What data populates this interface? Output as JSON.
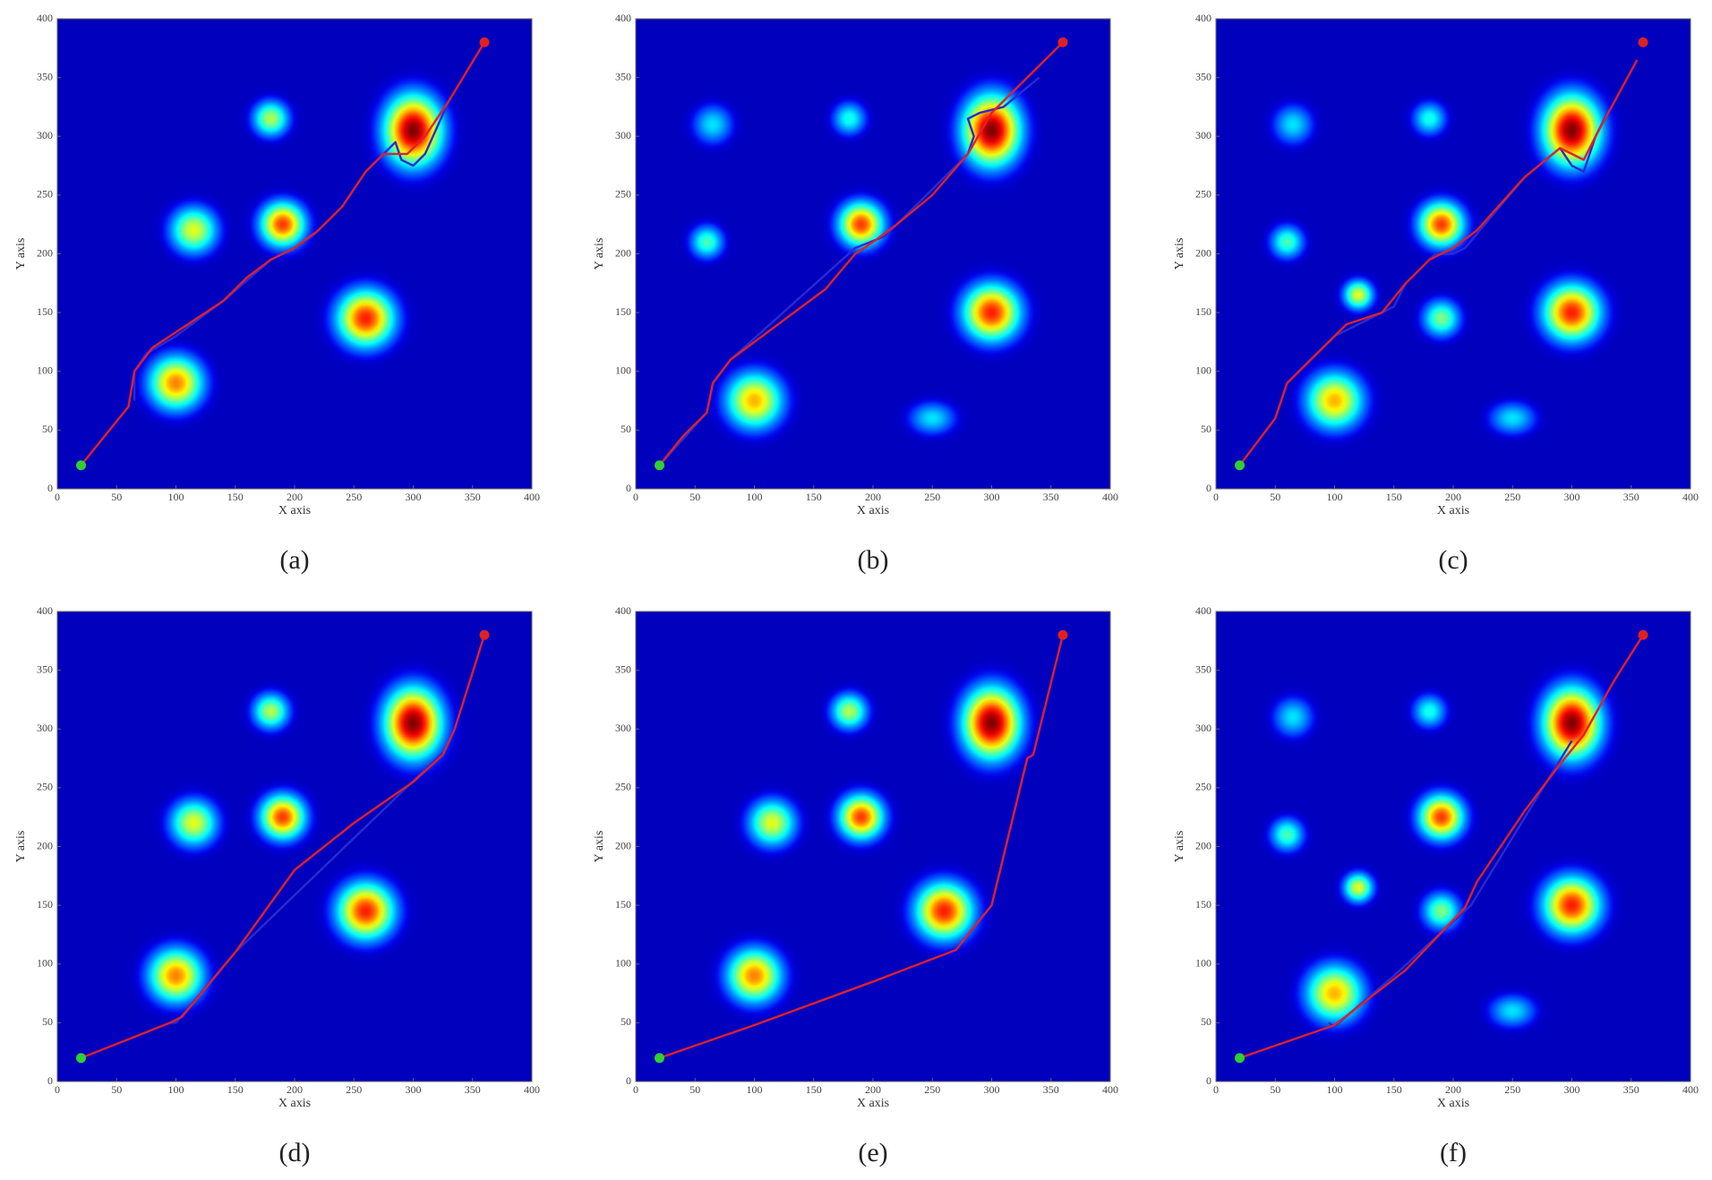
{
  "chart_data": [
    {
      "type": "heatmap",
      "caption": "(a)",
      "xlabel": "X axis",
      "ylabel": "Y axis",
      "xlim": [
        0,
        400
      ],
      "ylim": [
        0,
        400
      ],
      "xticks": [
        0,
        50,
        100,
        150,
        200,
        250,
        300,
        350,
        400
      ],
      "yticks": [
        0,
        50,
        100,
        150,
        200,
        250,
        300,
        350,
        400
      ],
      "threats": [
        {
          "x": 100,
          "y": 90,
          "rx": 40,
          "ry": 40,
          "peak": 0.75
        },
        {
          "x": 115,
          "y": 220,
          "rx": 35,
          "ry": 35,
          "peak": 0.6
        },
        {
          "x": 180,
          "y": 315,
          "rx": 27,
          "ry": 27,
          "peak": 0.55
        },
        {
          "x": 190,
          "y": 225,
          "rx": 33,
          "ry": 33,
          "peak": 0.82
        },
        {
          "x": 260,
          "y": 145,
          "rx": 42,
          "ry": 42,
          "peak": 0.85
        },
        {
          "x": 300,
          "y": 305,
          "rx": 42,
          "ry": 52,
          "peak": 1.0
        }
      ],
      "series": [
        {
          "color": "#2a2ad2",
          "x": [
            65,
            65,
            75,
            100,
            140,
            180,
            200,
            215,
            240,
            260,
            285,
            290,
            300,
            310,
            330
          ],
          "values": [
            75,
            100,
            115,
            130,
            160,
            195,
            205,
            215,
            240,
            270,
            295,
            280,
            275,
            285,
            330
          ]
        },
        {
          "color": "#e0202a",
          "x": [
            20,
            40,
            60,
            65,
            80,
            110,
            140,
            160,
            180,
            200,
            220,
            240,
            260,
            275,
            295,
            310,
            330,
            360
          ],
          "values": [
            20,
            45,
            70,
            100,
            120,
            140,
            160,
            180,
            195,
            205,
            220,
            240,
            270,
            285,
            285,
            300,
            330,
            380
          ]
        }
      ],
      "start": {
        "x": 20,
        "y": 20,
        "color": "#30d030"
      },
      "goal": {
        "x": 360,
        "y": 380,
        "color": "#e02020"
      }
    },
    {
      "type": "heatmap",
      "caption": "(b)",
      "xlabel": "X axis",
      "ylabel": "Y axis",
      "xlim": [
        0,
        400
      ],
      "ylim": [
        0,
        400
      ],
      "xticks": [
        0,
        50,
        100,
        150,
        200,
        250,
        300,
        350,
        400
      ],
      "yticks": [
        0,
        50,
        100,
        150,
        200,
        250,
        300,
        350,
        400
      ],
      "threats": [
        {
          "x": 65,
          "y": 310,
          "rx": 30,
          "ry": 30,
          "peak": 0.35
        },
        {
          "x": 180,
          "y": 315,
          "rx": 25,
          "ry": 25,
          "peak": 0.4
        },
        {
          "x": 60,
          "y": 210,
          "rx": 25,
          "ry": 25,
          "peak": 0.45
        },
        {
          "x": 190,
          "y": 225,
          "rx": 33,
          "ry": 33,
          "peak": 0.82
        },
        {
          "x": 100,
          "y": 75,
          "rx": 42,
          "ry": 42,
          "peak": 0.7
        },
        {
          "x": 250,
          "y": 60,
          "rx": 35,
          "ry": 25,
          "peak": 0.35
        },
        {
          "x": 300,
          "y": 150,
          "rx": 42,
          "ry": 42,
          "peak": 0.85
        },
        {
          "x": 300,
          "y": 305,
          "rx": 42,
          "ry": 52,
          "peak": 1.0
        }
      ],
      "series": [
        {
          "color": "#2a2ad2",
          "x": [
            20,
            60,
            65,
            80,
            185,
            210,
            280,
            285,
            280,
            290,
            310,
            340
          ],
          "values": [
            20,
            65,
            90,
            110,
            205,
            215,
            285,
            300,
            315,
            320,
            325,
            350
          ]
        },
        {
          "color": "#e0202a",
          "x": [
            20,
            40,
            60,
            65,
            80,
            120,
            160,
            185,
            200,
            220,
            250,
            280,
            300,
            330,
            360
          ],
          "values": [
            20,
            45,
            65,
            90,
            110,
            140,
            170,
            200,
            210,
            225,
            250,
            285,
            320,
            350,
            380
          ]
        }
      ],
      "start": {
        "x": 20,
        "y": 20,
        "color": "#30d030"
      },
      "goal": {
        "x": 360,
        "y": 380,
        "color": "#e02020"
      }
    },
    {
      "type": "heatmap",
      "caption": "(c)",
      "xlabel": "X axis",
      "ylabel": "Y axis",
      "xlim": [
        0,
        400
      ],
      "ylim": [
        0,
        400
      ],
      "xticks": [
        0,
        50,
        100,
        150,
        200,
        250,
        300,
        350,
        400
      ],
      "yticks": [
        0,
        50,
        100,
        150,
        200,
        250,
        300,
        350,
        400
      ],
      "threats": [
        {
          "x": 65,
          "y": 310,
          "rx": 30,
          "ry": 30,
          "peak": 0.35
        },
        {
          "x": 180,
          "y": 315,
          "rx": 25,
          "ry": 25,
          "peak": 0.4
        },
        {
          "x": 60,
          "y": 210,
          "rx": 25,
          "ry": 25,
          "peak": 0.45
        },
        {
          "x": 120,
          "y": 165,
          "rx": 22,
          "ry": 22,
          "peak": 0.6
        },
        {
          "x": 190,
          "y": 145,
          "rx": 28,
          "ry": 28,
          "peak": 0.5
        },
        {
          "x": 190,
          "y": 225,
          "rx": 33,
          "ry": 33,
          "peak": 0.82
        },
        {
          "x": 100,
          "y": 75,
          "rx": 42,
          "ry": 42,
          "peak": 0.7
        },
        {
          "x": 250,
          "y": 60,
          "rx": 35,
          "ry": 25,
          "peak": 0.35
        },
        {
          "x": 300,
          "y": 150,
          "rx": 42,
          "ry": 42,
          "peak": 0.85
        },
        {
          "x": 300,
          "y": 305,
          "rx": 42,
          "ry": 52,
          "peak": 1.0
        }
      ],
      "series": [
        {
          "color": "#2a2ad2",
          "x": [
            50,
            60,
            100,
            130,
            150,
            160,
            185,
            200,
            210,
            260,
            290,
            300,
            310,
            320,
            330
          ],
          "values": [
            60,
            90,
            130,
            145,
            155,
            175,
            200,
            200,
            205,
            265,
            290,
            275,
            270,
            300,
            320
          ]
        },
        {
          "color": "#e0202a",
          "x": [
            20,
            50,
            60,
            80,
            110,
            140,
            160,
            180,
            200,
            220,
            260,
            290,
            310,
            320,
            355
          ],
          "values": [
            20,
            60,
            90,
            110,
            140,
            150,
            175,
            195,
            205,
            220,
            265,
            290,
            280,
            300,
            365
          ]
        }
      ],
      "start": {
        "x": 20,
        "y": 20,
        "color": "#30d030"
      },
      "goal": {
        "x": 360,
        "y": 380,
        "color": "#e02020"
      }
    },
    {
      "type": "heatmap",
      "caption": "(d)",
      "xlabel": "X axis",
      "ylabel": "Y axis",
      "xlim": [
        0,
        400
      ],
      "ylim": [
        0,
        400
      ],
      "xticks": [
        0,
        50,
        100,
        150,
        200,
        250,
        300,
        350,
        400
      ],
      "yticks": [
        0,
        50,
        100,
        150,
        200,
        250,
        300,
        350,
        400
      ],
      "threats": [
        {
          "x": 100,
          "y": 90,
          "rx": 40,
          "ry": 40,
          "peak": 0.75
        },
        {
          "x": 115,
          "y": 220,
          "rx": 35,
          "ry": 35,
          "peak": 0.6
        },
        {
          "x": 180,
          "y": 315,
          "rx": 27,
          "ry": 27,
          "peak": 0.55
        },
        {
          "x": 190,
          "y": 225,
          "rx": 33,
          "ry": 33,
          "peak": 0.82
        },
        {
          "x": 260,
          "y": 145,
          "rx": 42,
          "ry": 42,
          "peak": 0.85
        },
        {
          "x": 300,
          "y": 305,
          "rx": 42,
          "ry": 52,
          "peak": 1.0
        }
      ],
      "series": [
        {
          "color": "#2a2ad2",
          "x": [
            95,
            100,
            150,
            325
          ],
          "values": [
            50,
            50,
            110,
            280
          ]
        },
        {
          "color": "#e0202a",
          "x": [
            20,
            95,
            105,
            150,
            200,
            250,
            300,
            325,
            335,
            360
          ],
          "values": [
            20,
            50,
            55,
            110,
            180,
            220,
            255,
            278,
            300,
            380
          ]
        }
      ],
      "start": {
        "x": 20,
        "y": 20,
        "color": "#30d030"
      },
      "goal": {
        "x": 360,
        "y": 380,
        "color": "#e02020"
      }
    },
    {
      "type": "heatmap",
      "caption": "(e)",
      "xlabel": "X axis",
      "ylabel": "Y axis",
      "xlim": [
        0,
        400
      ],
      "ylim": [
        0,
        400
      ],
      "xticks": [
        0,
        50,
        100,
        150,
        200,
        250,
        300,
        350,
        400
      ],
      "yticks": [
        0,
        50,
        100,
        150,
        200,
        250,
        300,
        350,
        400
      ],
      "threats": [
        {
          "x": 100,
          "y": 90,
          "rx": 40,
          "ry": 40,
          "peak": 0.75
        },
        {
          "x": 115,
          "y": 220,
          "rx": 35,
          "ry": 35,
          "peak": 0.6
        },
        {
          "x": 180,
          "y": 315,
          "rx": 27,
          "ry": 27,
          "peak": 0.55
        },
        {
          "x": 190,
          "y": 225,
          "rx": 33,
          "ry": 33,
          "peak": 0.82
        },
        {
          "x": 260,
          "y": 145,
          "rx": 42,
          "ry": 42,
          "peak": 0.85
        },
        {
          "x": 300,
          "y": 305,
          "rx": 42,
          "ry": 52,
          "peak": 1.0
        }
      ],
      "series": [
        {
          "color": "#2a2ad2",
          "x": [
            270,
            280,
            300,
            330
          ],
          "values": [
            112,
            125,
            150,
            275
          ]
        },
        {
          "color": "#e0202a",
          "x": [
            20,
            100,
            200,
            270,
            280,
            300,
            330,
            335,
            360
          ],
          "values": [
            20,
            48,
            85,
            112,
            125,
            150,
            275,
            278,
            380
          ]
        }
      ],
      "start": {
        "x": 20,
        "y": 20,
        "color": "#30d030"
      },
      "goal": {
        "x": 360,
        "y": 380,
        "color": "#e02020"
      }
    },
    {
      "type": "heatmap",
      "caption": "(f)",
      "xlabel": "X axis",
      "ylabel": "Y axis",
      "xlim": [
        0,
        400
      ],
      "ylim": [
        0,
        400
      ],
      "xticks": [
        0,
        50,
        100,
        150,
        200,
        250,
        300,
        350,
        400
      ],
      "yticks": [
        0,
        50,
        100,
        150,
        200,
        250,
        300,
        350,
        400
      ],
      "threats": [
        {
          "x": 65,
          "y": 310,
          "rx": 30,
          "ry": 30,
          "peak": 0.35
        },
        {
          "x": 180,
          "y": 315,
          "rx": 25,
          "ry": 25,
          "peak": 0.4
        },
        {
          "x": 60,
          "y": 210,
          "rx": 25,
          "ry": 25,
          "peak": 0.45
        },
        {
          "x": 120,
          "y": 165,
          "rx": 22,
          "ry": 22,
          "peak": 0.6
        },
        {
          "x": 190,
          "y": 145,
          "rx": 28,
          "ry": 28,
          "peak": 0.5
        },
        {
          "x": 190,
          "y": 225,
          "rx": 33,
          "ry": 33,
          "peak": 0.82
        },
        {
          "x": 100,
          "y": 75,
          "rx": 42,
          "ry": 42,
          "peak": 0.7
        },
        {
          "x": 250,
          "y": 60,
          "rx": 35,
          "ry": 25,
          "peak": 0.35
        },
        {
          "x": 300,
          "y": 150,
          "rx": 42,
          "ry": 42,
          "peak": 0.85
        },
        {
          "x": 300,
          "y": 305,
          "rx": 42,
          "ry": 52,
          "peak": 1.0
        }
      ],
      "series": [
        {
          "color": "#2a2ad2",
          "x": [
            95,
            100,
            150,
            215,
            300
          ],
          "values": [
            50,
            47,
            90,
            150,
            290
          ]
        },
        {
          "color": "#e0202a",
          "x": [
            20,
            100,
            160,
            210,
            220,
            260,
            290,
            310,
            335,
            360
          ],
          "values": [
            20,
            48,
            95,
            148,
            170,
            230,
            270,
            295,
            340,
            380
          ]
        }
      ],
      "start": {
        "x": 20,
        "y": 20,
        "color": "#30d030"
      },
      "goal": {
        "x": 360,
        "y": 380,
        "color": "#e02020"
      }
    }
  ]
}
